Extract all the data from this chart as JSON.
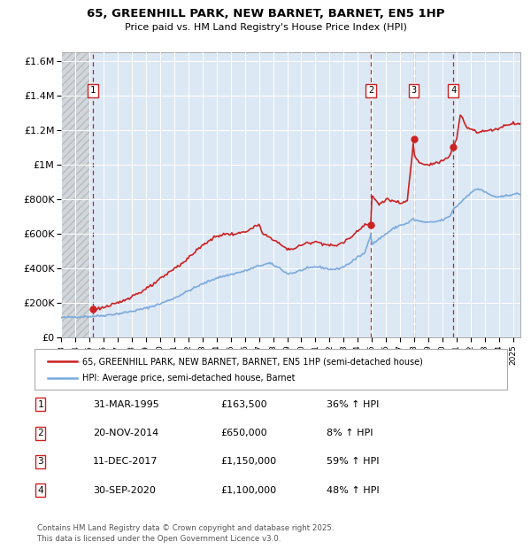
{
  "title_line1": "65, GREENHILL PARK, NEW BARNET, BARNET, EN5 1HP",
  "title_line2": "Price paid vs. HM Land Registry's House Price Index (HPI)",
  "ylabel_ticks": [
    "£0",
    "£200K",
    "£400K",
    "£600K",
    "£800K",
    "£1M",
    "£1.2M",
    "£1.4M",
    "£1.6M"
  ],
  "ytick_values": [
    0,
    200000,
    400000,
    600000,
    800000,
    1000000,
    1200000,
    1400000,
    1600000
  ],
  "ylim": [
    0,
    1650000
  ],
  "xlim_start": 1993.0,
  "xlim_end": 2025.5,
  "sale_dates": [
    1995.25,
    2014.917,
    2017.958,
    2020.75
  ],
  "sale_prices": [
    163500,
    650000,
    1150000,
    1100000
  ],
  "sale_labels": [
    "1",
    "2",
    "3",
    "4"
  ],
  "hpi_line_color": "#7aaadd",
  "price_line_color": "#cc2222",
  "dashed_line_color": "#cc2222",
  "background_plot": "#dde8f5",
  "legend_label_price": "65, GREENHILL PARK, NEW BARNET, BARNET, EN5 1HP (semi-detached house)",
  "legend_label_hpi": "HPI: Average price, semi-detached house, Barnet",
  "table_rows": [
    [
      "1",
      "31-MAR-1995",
      "£163,500",
      "36% ↑ HPI"
    ],
    [
      "2",
      "20-NOV-2014",
      "£650,000",
      "8% ↑ HPI"
    ],
    [
      "3",
      "11-DEC-2017",
      "£1,150,000",
      "59% ↑ HPI"
    ],
    [
      "4",
      "30-SEP-2020",
      "£1,100,000",
      "48% ↑ HPI"
    ]
  ],
  "footer_text": "Contains HM Land Registry data © Crown copyright and database right 2025.\nThis data is licensed under the Open Government Licence v3.0."
}
